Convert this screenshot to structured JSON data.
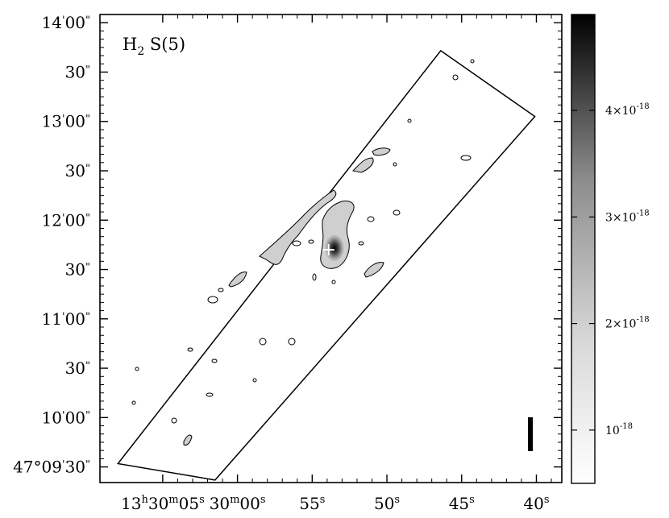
{
  "chart_data": {
    "type": "heatmap",
    "map_label": {
      "species": "H",
      "subscript": "2",
      "rest": " S(5)"
    },
    "y_ticks": [
      {
        "value": 600,
        "deg": "47°",
        "min": "14",
        "sec": "00"
      },
      {
        "value": 570,
        "deg": "",
        "min": "",
        "sec": "30"
      },
      {
        "value": 540,
        "deg": "",
        "min": "13",
        "sec": "00"
      },
      {
        "value": 510,
        "deg": "",
        "min": "",
        "sec": "30"
      },
      {
        "value": 480,
        "deg": "",
        "min": "12",
        "sec": "00"
      },
      {
        "value": 450,
        "deg": "",
        "min": "",
        "sec": "30"
      },
      {
        "value": 420,
        "deg": "",
        "min": "11",
        "sec": "00"
      },
      {
        "value": 390,
        "deg": "",
        "min": "",
        "sec": "30"
      },
      {
        "value": 360,
        "deg": "",
        "min": "10",
        "sec": "00"
      },
      {
        "value": 330,
        "deg": "47°",
        "min": "09",
        "sec": "30"
      }
    ],
    "y_visible_deg": [
      false,
      false,
      false,
      false,
      false,
      false,
      false,
      false,
      false,
      true
    ],
    "x_ticks": [
      {
        "value": 5,
        "h": "13",
        "m": "30",
        "s": "05"
      },
      {
        "value": 0,
        "h": "",
        "m": "30",
        "s": "00"
      },
      {
        "value": -5,
        "h": "",
        "m": "",
        "s": "55"
      },
      {
        "value": -10,
        "h": "",
        "m": "",
        "s": "50"
      },
      {
        "value": -15,
        "h": "",
        "m": "",
        "s": "45"
      },
      {
        "value": -20,
        "h": "",
        "m": "",
        "s": "40"
      }
    ],
    "xlim": [
      9.2,
      -21.7
    ],
    "ylim": [
      320.5,
      605
    ],
    "colorbar": {
      "range": [
        5e-19,
        4.9e-18
      ],
      "ticks": [
        {
          "value": 1e-18,
          "mant": "",
          "exp": "-18",
          "text": "10"
        },
        {
          "value": 2e-18,
          "mant": "2×",
          "exp": "-18",
          "text": "10"
        },
        {
          "value": 3e-18,
          "mant": "3×",
          "exp": "-18",
          "text": "10"
        },
        {
          "value": 4e-18,
          "mant": "4×",
          "exp": "-18",
          "text": "10"
        }
      ],
      "colormap": "white-to-black"
    },
    "slit_polygon": [
      [
        8.0,
        332
      ],
      [
        -13.6,
        583
      ],
      [
        -19.9,
        543
      ],
      [
        1.5,
        322
      ]
    ],
    "peak_marker": {
      "x": -6.1,
      "y": 462
    },
    "scale_bar": true,
    "contour_levels": 1
  }
}
